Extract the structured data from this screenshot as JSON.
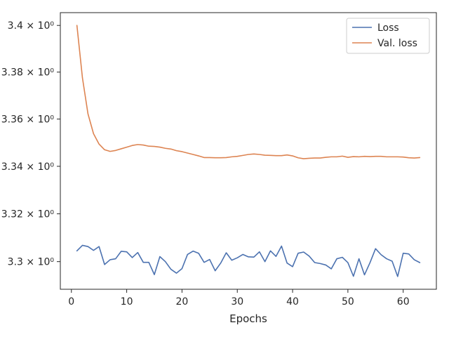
{
  "chart_data": {
    "type": "line",
    "title": "",
    "xlabel": "Epochs",
    "ylabel": "",
    "xlim": [
      -2,
      66
    ],
    "ylim": [
      3.2885,
      3.4055
    ],
    "log_y": true,
    "grid": false,
    "legend_position": "top-right",
    "x_ticks": [
      0,
      10,
      20,
      30,
      40,
      50,
      60
    ],
    "x_tick_labels": [
      "0",
      "10",
      "20",
      "30",
      "40",
      "50",
      "60"
    ],
    "y_ticks": [
      3.3,
      3.32,
      3.34,
      3.36,
      3.38,
      3.4
    ],
    "y_tick_labels": [
      "3.3 × 10⁰",
      "3.32 × 10⁰",
      "3.34 × 10⁰",
      "3.36 × 10⁰",
      "3.38 × 10⁰",
      "3.4 × 10⁰"
    ],
    "x": [
      1,
      2,
      3,
      4,
      5,
      6,
      7,
      8,
      9,
      10,
      11,
      12,
      13,
      14,
      15,
      16,
      17,
      18,
      19,
      20,
      21,
      22,
      23,
      24,
      25,
      26,
      27,
      28,
      29,
      30,
      31,
      32,
      33,
      34,
      35,
      36,
      37,
      38,
      39,
      40,
      41,
      42,
      43,
      44,
      45,
      46,
      47,
      48,
      49,
      50,
      51,
      52,
      53,
      54,
      55,
      56,
      57,
      58,
      59,
      60,
      61,
      62,
      63
    ],
    "series": [
      {
        "name": "Loss",
        "color": "#4c72b0",
        "values": [
          3.3045,
          3.3068,
          3.3063,
          3.3047,
          3.3063,
          3.2988,
          3.3008,
          3.3012,
          3.3043,
          3.3041,
          3.3017,
          3.3038,
          3.2997,
          3.2997,
          3.2946,
          3.3021,
          3.3,
          3.2968,
          3.2952,
          3.2971,
          3.303,
          3.3044,
          3.3035,
          3.2997,
          3.3009,
          3.2962,
          3.2994,
          3.3037,
          3.3006,
          3.3016,
          3.303,
          3.302,
          3.3019,
          3.3041,
          3.3,
          3.3045,
          3.3022,
          3.3065,
          3.2994,
          3.2979,
          3.3035,
          3.304,
          3.3023,
          3.2996,
          3.2992,
          3.2986,
          3.297,
          3.3012,
          3.3018,
          3.2996,
          3.2939,
          3.3012,
          3.2945,
          3.2996,
          3.3054,
          3.3029,
          3.3012,
          3.3002,
          3.2938,
          3.3035,
          3.3032,
          3.3008,
          3.2996
        ]
      },
      {
        "name": "Val. loss",
        "color": "#dd8452",
        "values": [
          3.4,
          3.3775,
          3.3622,
          3.3538,
          3.3494,
          3.347,
          3.3463,
          3.3467,
          3.3474,
          3.3481,
          3.3488,
          3.3492,
          3.349,
          3.3485,
          3.3484,
          3.3481,
          3.3476,
          3.3473,
          3.3466,
          3.3462,
          3.3456,
          3.345,
          3.3444,
          3.3437,
          3.3437,
          3.3436,
          3.3436,
          3.3437,
          3.344,
          3.3442,
          3.3446,
          3.345,
          3.3452,
          3.345,
          3.3447,
          3.3446,
          3.3445,
          3.3445,
          3.3448,
          3.3444,
          3.3436,
          3.3432,
          3.3434,
          3.3435,
          3.3435,
          3.3438,
          3.344,
          3.344,
          3.3443,
          3.3438,
          3.3441,
          3.344,
          3.3442,
          3.3441,
          3.3442,
          3.3442,
          3.344,
          3.344,
          3.344,
          3.3439,
          3.3436,
          3.3435,
          3.3437
        ]
      }
    ]
  }
}
